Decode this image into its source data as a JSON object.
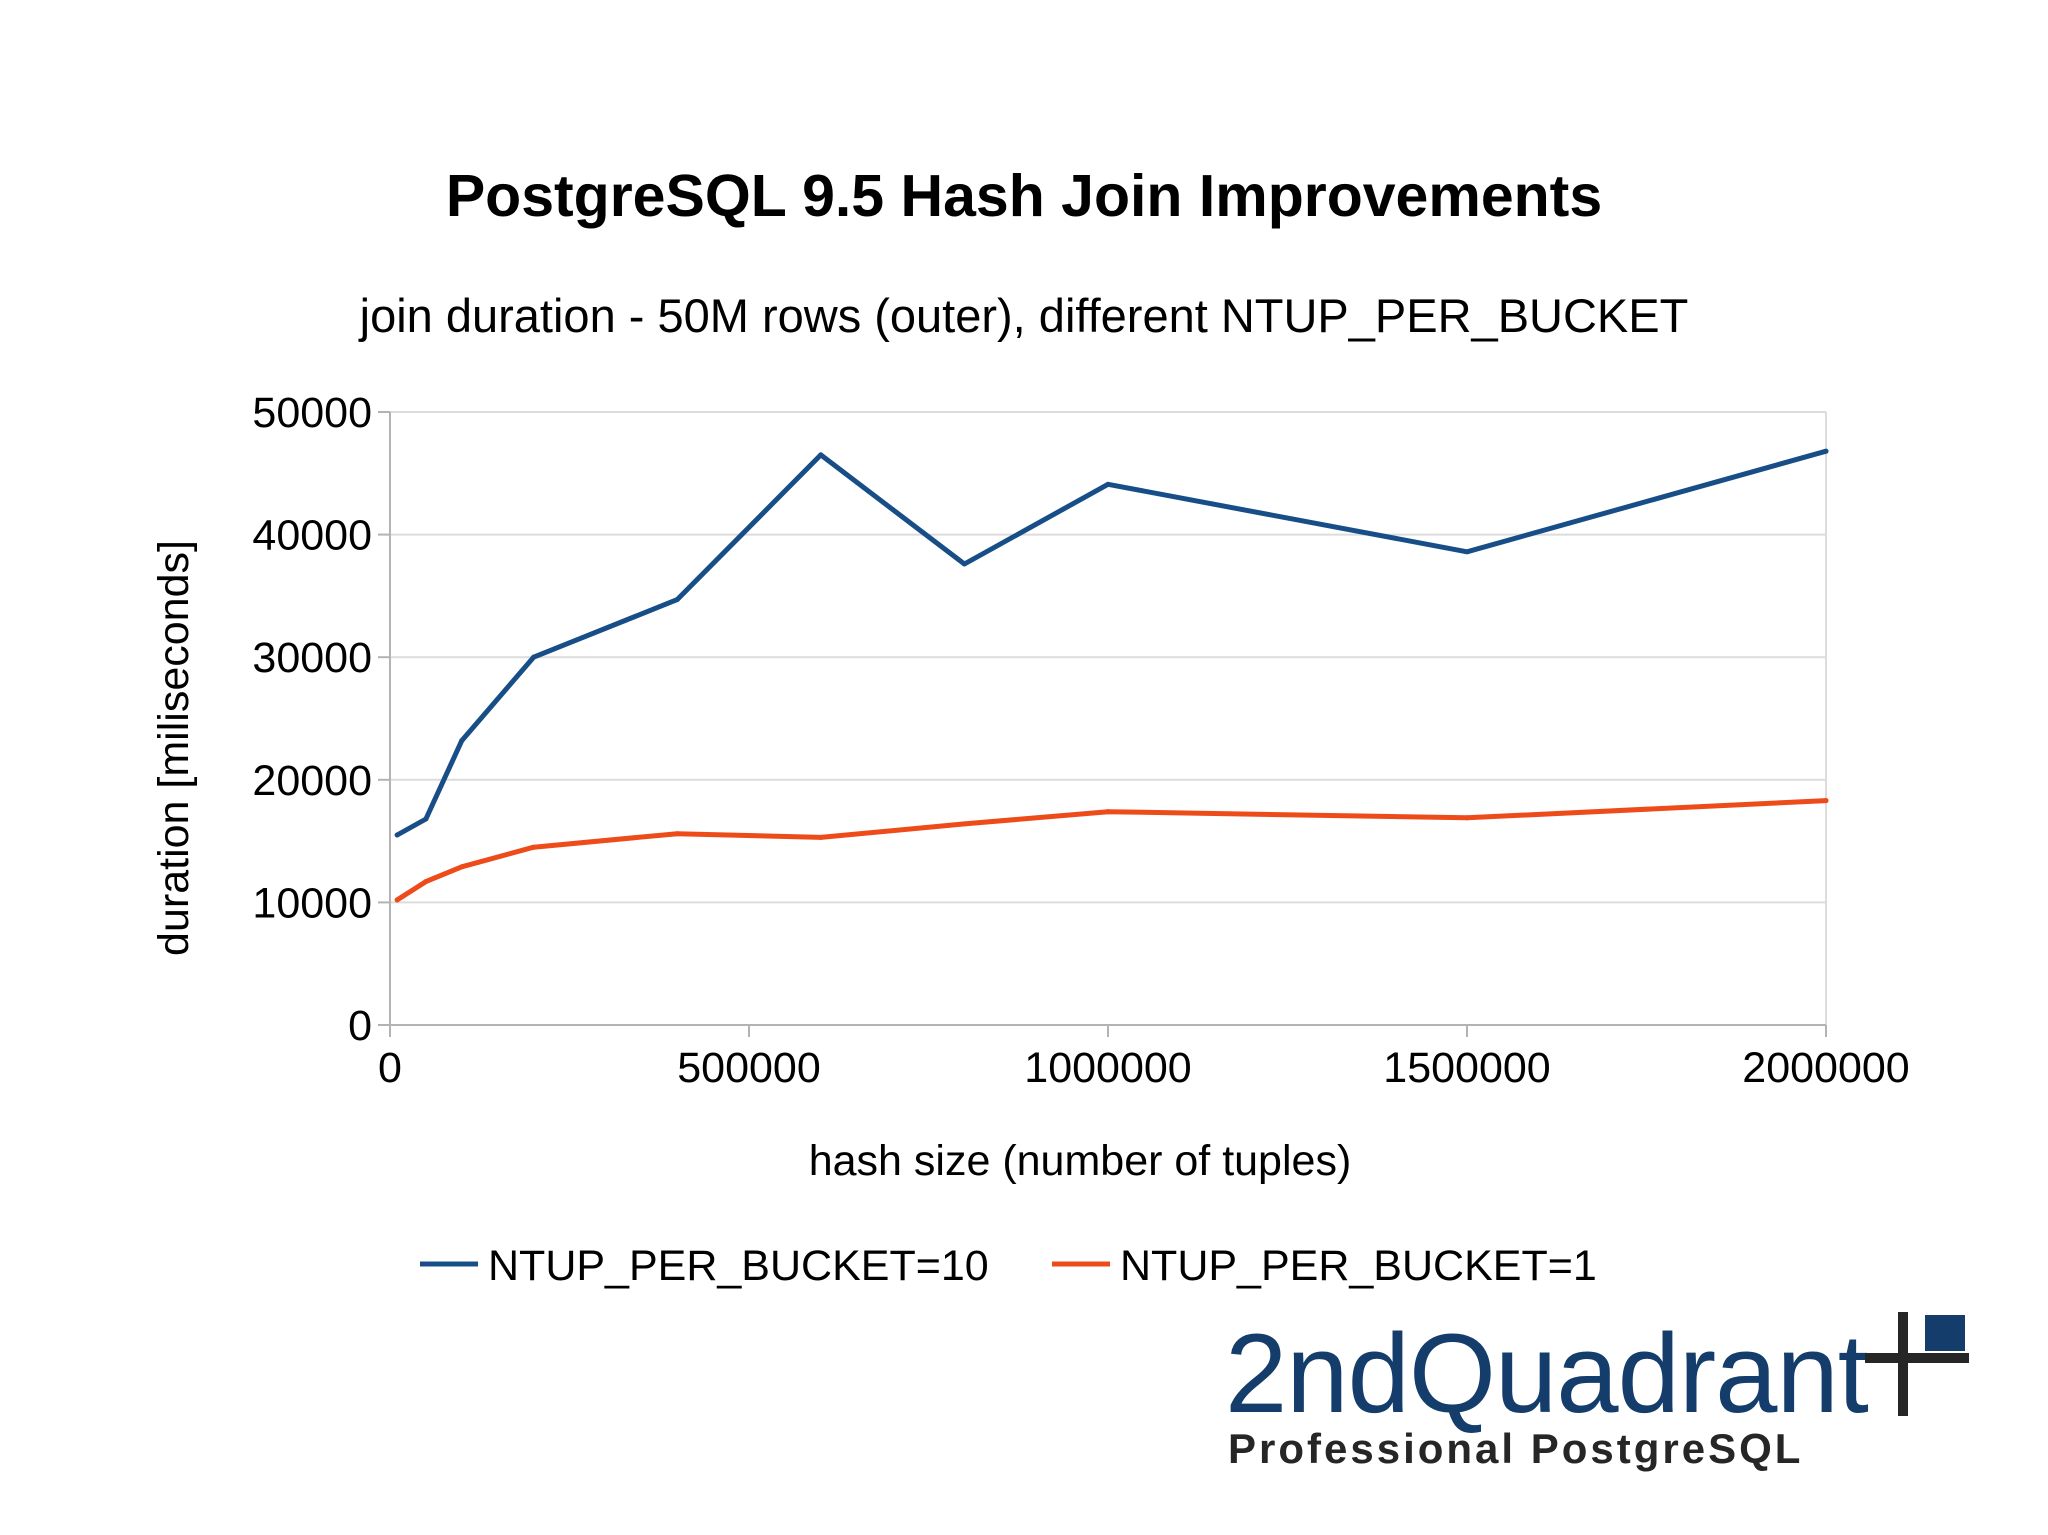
{
  "chart_data": {
    "type": "line",
    "title": "PostgreSQL 9.5 Hash Join Improvements",
    "subtitle": "join duration - 50M rows (outer), different NTUP_PER_BUCKET",
    "xlabel": "hash size (number of tuples)",
    "ylabel": "duration [miliseconds]",
    "xlim": [
      0,
      2000000
    ],
    "ylim": [
      0,
      50000
    ],
    "x_ticks": [
      0,
      500000,
      1000000,
      1500000,
      2000000
    ],
    "y_ticks": [
      0,
      10000,
      20000,
      30000,
      40000,
      50000
    ],
    "grid": true,
    "legend_position": "bottom",
    "series": [
      {
        "name": "NTUP_PER_BUCKET=10",
        "color": "#184e87",
        "points": [
          [
            10000,
            15500
          ],
          [
            50000,
            16800
          ],
          [
            100000,
            23200
          ],
          [
            200000,
            30000
          ],
          [
            400000,
            34700
          ],
          [
            600000,
            46500
          ],
          [
            800000,
            37600
          ],
          [
            1000000,
            44100
          ],
          [
            1500000,
            38600
          ],
          [
            2000000,
            46800
          ]
        ]
      },
      {
        "name": "NTUP_PER_BUCKET=1",
        "color": "#ee4b1b",
        "points": [
          [
            10000,
            10200
          ],
          [
            50000,
            11700
          ],
          [
            100000,
            12900
          ],
          [
            200000,
            14500
          ],
          [
            400000,
            15600
          ],
          [
            600000,
            15300
          ],
          [
            800000,
            16400
          ],
          [
            1000000,
            17400
          ],
          [
            1500000,
            16900
          ],
          [
            2000000,
            18300
          ]
        ]
      }
    ]
  },
  "logo": {
    "name": "2ndQuadrant",
    "tagline": "Professional PostgreSQL",
    "brand_color": "#143d6b",
    "mark_color": "#262626"
  }
}
